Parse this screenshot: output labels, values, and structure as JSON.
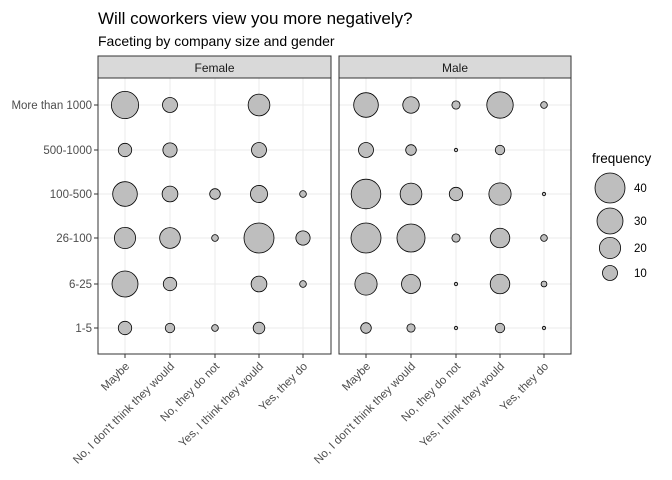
{
  "chart_data": {
    "type": "scatter",
    "title": "Will coworkers view you more negatively?",
    "subtitle": "Faceting by company size and gender",
    "xlabel": "",
    "ylabel": "",
    "grid": true,
    "legend_position": "right",
    "x_categories": [
      "Maybe",
      "No, I don't think they would",
      "No, they do not",
      "Yes, I think they would",
      "Yes, they do"
    ],
    "y_categories": [
      "1-5",
      "6-25",
      "26-100",
      "100-500",
      "500-1000",
      "More than 1000"
    ],
    "size_legend": {
      "title": "frequency",
      "breaks": [
        40,
        30,
        20,
        10
      ],
      "labels": [
        "40",
        "30",
        "20",
        "10"
      ]
    },
    "point_colors": {
      "fill": "#bebebe",
      "stroke": "#000000"
    },
    "facets": [
      {
        "label": "Female",
        "points": [
          {
            "x": "Maybe",
            "y": "More than 1000",
            "frequency": 33
          },
          {
            "x": "No, I don't think they would",
            "y": "More than 1000",
            "frequency": 10
          },
          {
            "x": "Yes, I think they would",
            "y": "More than 1000",
            "frequency": 21
          },
          {
            "x": "Maybe",
            "y": "500-1000",
            "frequency": 8
          },
          {
            "x": "No, I don't think they would",
            "y": "500-1000",
            "frequency": 9
          },
          {
            "x": "Yes, I think they would",
            "y": "500-1000",
            "frequency": 10
          },
          {
            "x": "Maybe",
            "y": "100-500",
            "frequency": 27
          },
          {
            "x": "No, I don't think they would",
            "y": "100-500",
            "frequency": 11
          },
          {
            "x": "No, they do not",
            "y": "100-500",
            "frequency": 5
          },
          {
            "x": "Yes, I think they would",
            "y": "100-500",
            "frequency": 13
          },
          {
            "x": "Yes, they do",
            "y": "100-500",
            "frequency": 2
          },
          {
            "x": "Maybe",
            "y": "26-100",
            "frequency": 20
          },
          {
            "x": "No, I don't think they would",
            "y": "26-100",
            "frequency": 19
          },
          {
            "x": "No, they do not",
            "y": "26-100",
            "frequency": 2
          },
          {
            "x": "Yes, I think they would",
            "y": "26-100",
            "frequency": 40
          },
          {
            "x": "Yes, they do",
            "y": "26-100",
            "frequency": 9
          },
          {
            "x": "Maybe",
            "y": "6-25",
            "frequency": 30
          },
          {
            "x": "No, I don't think they would",
            "y": "6-25",
            "frequency": 8
          },
          {
            "x": "Yes, I think they would",
            "y": "6-25",
            "frequency": 11
          },
          {
            "x": "Yes, they do",
            "y": "6-25",
            "frequency": 2
          },
          {
            "x": "Maybe",
            "y": "1-5",
            "frequency": 8
          },
          {
            "x": "No, I don't think they would",
            "y": "1-5",
            "frequency": 4
          },
          {
            "x": "No, they do not",
            "y": "1-5",
            "frequency": 2
          },
          {
            "x": "Yes, I think they would",
            "y": "1-5",
            "frequency": 6
          }
        ]
      },
      {
        "label": "Male",
        "points": [
          {
            "x": "Maybe",
            "y": "More than 1000",
            "frequency": 27
          },
          {
            "x": "No, I don't think they would",
            "y": "More than 1000",
            "frequency": 12
          },
          {
            "x": "No, they do not",
            "y": "More than 1000",
            "frequency": 3
          },
          {
            "x": "Yes, I think they would",
            "y": "More than 1000",
            "frequency": 31
          },
          {
            "x": "Yes, they do",
            "y": "More than 1000",
            "frequency": 2
          },
          {
            "x": "Maybe",
            "y": "500-1000",
            "frequency": 10
          },
          {
            "x": "No, I don't think they would",
            "y": "500-1000",
            "frequency": 5
          },
          {
            "x": "No, they do not",
            "y": "500-1000",
            "frequency": 0.5
          },
          {
            "x": "Yes, I think they would",
            "y": "500-1000",
            "frequency": 4
          },
          {
            "x": "Maybe",
            "y": "100-500",
            "frequency": 39
          },
          {
            "x": "No, I don't think they would",
            "y": "100-500",
            "frequency": 21
          },
          {
            "x": "No, they do not",
            "y": "100-500",
            "frequency": 8
          },
          {
            "x": "Yes, I think they would",
            "y": "100-500",
            "frequency": 22
          },
          {
            "x": "Yes, they do",
            "y": "100-500",
            "frequency": 0.5
          },
          {
            "x": "Maybe",
            "y": "26-100",
            "frequency": 40
          },
          {
            "x": "No, I don't think they would",
            "y": "26-100",
            "frequency": 35
          },
          {
            "x": "No, they do not",
            "y": "26-100",
            "frequency": 3
          },
          {
            "x": "Yes, I think they would",
            "y": "26-100",
            "frequency": 17
          },
          {
            "x": "Yes, they do",
            "y": "26-100",
            "frequency": 2
          },
          {
            "x": "Maybe",
            "y": "6-25",
            "frequency": 22
          },
          {
            "x": "No, I don't think they would",
            "y": "6-25",
            "frequency": 16
          },
          {
            "x": "No, they do not",
            "y": "6-25",
            "frequency": 0.5
          },
          {
            "x": "Yes, I think they would",
            "y": "6-25",
            "frequency": 17
          },
          {
            "x": "Yes, they do",
            "y": "6-25",
            "frequency": 1.5
          },
          {
            "x": "Maybe",
            "y": "1-5",
            "frequency": 5
          },
          {
            "x": "No, I don't think they would",
            "y": "1-5",
            "frequency": 3
          },
          {
            "x": "No, they do not",
            "y": "1-5",
            "frequency": 0.5
          },
          {
            "x": "Yes, I think they would",
            "y": "1-5",
            "frequency": 4
          },
          {
            "x": "Yes, they do",
            "y": "1-5",
            "frequency": 0.5
          }
        ]
      }
    ]
  }
}
